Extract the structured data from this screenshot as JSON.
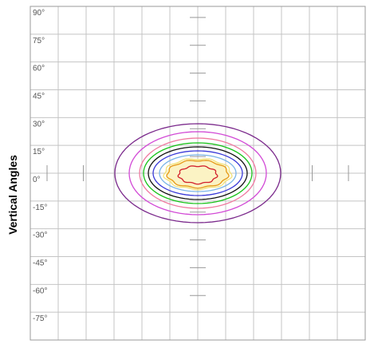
{
  "chart_data": {
    "type": "contour",
    "title": "",
    "ylabel": "Vertical Angles",
    "xlabel": "",
    "y_ticks": [
      "90°",
      "75°",
      "60°",
      "45°",
      "30°",
      "15°",
      "0°",
      "-15°",
      "-30°",
      "-45°",
      "-60°",
      "-75°"
    ],
    "y_range": [
      -90,
      90
    ],
    "grid": true,
    "contours": [
      {
        "color": "#7b2a8c",
        "rx": 104,
        "ry": 62,
        "cy": 0,
        "wobble": 0
      },
      {
        "color": "#d24bd6",
        "rx": 86,
        "ry": 52,
        "cy": 0,
        "wobble": 0
      },
      {
        "color": "#f07aa0",
        "rx": 73,
        "ry": 44,
        "cy": 0,
        "wobble": 0
      },
      {
        "color": "#19c219",
        "rx": 68,
        "ry": 38,
        "cy": 0,
        "wobble": 0
      },
      {
        "color": "#111111",
        "rx": 62,
        "ry": 33,
        "cy": 0,
        "wobble": 0
      },
      {
        "color": "#3a3ad8",
        "rx": 56,
        "ry": 28,
        "cy": 0,
        "wobble": 0
      },
      {
        "color": "#7ab4e8",
        "rx": 48,
        "ry": 23,
        "cy": 0,
        "wobble": 0
      },
      {
        "color": "#f2e27a",
        "rx": 42,
        "ry": 19,
        "cy": 1,
        "wobble": 1.5
      },
      {
        "color": "#e69a17",
        "rx": 38,
        "ry": 17,
        "cy": 1,
        "wobble": 1.5
      },
      {
        "color": "#d21f2c",
        "rx": 24,
        "ry": 11,
        "cy": 2,
        "wobble": 1.2
      }
    ],
    "center_fill": "#fbf3c4",
    "colors": {
      "grid": "#c4c4c4",
      "frame": "#9a9a9a",
      "tick_label": "#555555"
    }
  }
}
